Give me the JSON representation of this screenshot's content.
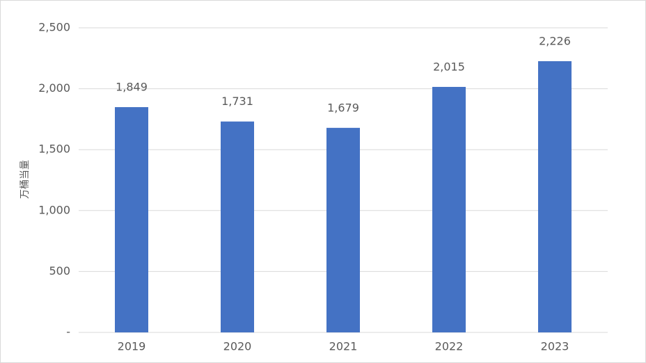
{
  "chart_data": {
    "type": "bar",
    "y_label": "万桶当量",
    "categories": [
      "2019",
      "2020",
      "2021",
      "2022",
      "2023"
    ],
    "values": [
      1849,
      1731,
      1679,
      2015,
      2226
    ],
    "value_labels": [
      "1,849",
      "1,731",
      "1,679",
      "2,015",
      "2,226"
    ],
    "color": "#4472c4",
    "ylim": [
      0,
      2500
    ],
    "yticks": [
      {
        "value": 0,
        "label": "-"
      },
      500,
      {
        "value": 1000,
        "label": "1,000"
      },
      {
        "value": 1500,
        "label": "1,500"
      },
      {
        "value": 2000,
        "label": "2,000"
      },
      {
        "value": 2500,
        "label": "2,500"
      }
    ],
    "grid": true
  }
}
